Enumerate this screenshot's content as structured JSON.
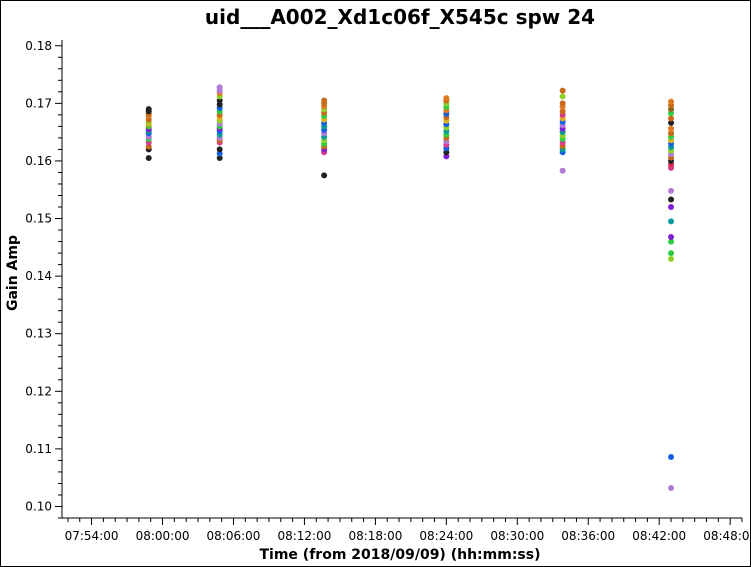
{
  "chart_data": {
    "type": "scatter",
    "title": "uid___A002_Xd1c06f_X545c spw 24",
    "xlabel": "Time (from 2018/09/09) (hh:mm:ss)",
    "ylabel": "Gain Amp",
    "xlim": [
      "07:51:30",
      "08:49:00"
    ],
    "ylim": [
      0.098,
      0.181
    ],
    "x_ticks": [
      "07:54:00",
      "08:00:00",
      "08:06:00",
      "08:12:00",
      "08:18:00",
      "08:24:00",
      "08:30:00",
      "08:36:00",
      "08:42:00",
      "08:48:00"
    ],
    "y_ticks": [
      "0.10",
      "0.11",
      "0.12",
      "0.13",
      "0.14",
      "0.15",
      "0.16",
      "0.17",
      "0.18"
    ],
    "grid": false,
    "legend": "none",
    "points": [
      {
        "x": "07:58:50",
        "y": 0.1605,
        "color": "#222222"
      },
      {
        "x": "07:58:50",
        "y": 0.162,
        "color": "#222222"
      },
      {
        "x": "07:58:50",
        "y": 0.1625,
        "color": "#c96a1a"
      },
      {
        "x": "07:58:50",
        "y": 0.1632,
        "color": "#d63a8e"
      },
      {
        "x": "07:58:50",
        "y": 0.1638,
        "color": "#2ecc40"
      },
      {
        "x": "07:58:50",
        "y": 0.1642,
        "color": "#b07bd6"
      },
      {
        "x": "07:58:50",
        "y": 0.1648,
        "color": "#1560e0"
      },
      {
        "x": "07:58:50",
        "y": 0.1652,
        "color": "#0a9a9a"
      },
      {
        "x": "07:58:50",
        "y": 0.1655,
        "color": "#7f1fd1"
      },
      {
        "x": "07:58:50",
        "y": 0.166,
        "color": "#5ab82e"
      },
      {
        "x": "07:58:50",
        "y": 0.1665,
        "color": "#e0b020"
      },
      {
        "x": "07:58:50",
        "y": 0.1668,
        "color": "#8fd028"
      },
      {
        "x": "07:58:50",
        "y": 0.1672,
        "color": "#c96a1a"
      },
      {
        "x": "07:58:50",
        "y": 0.1678,
        "color": "#e07a20"
      },
      {
        "x": "07:58:50",
        "y": 0.1682,
        "color": "#c96a1a"
      },
      {
        "x": "07:58:50",
        "y": 0.1686,
        "color": "#222222"
      },
      {
        "x": "07:58:50",
        "y": 0.169,
        "color": "#222222"
      },
      {
        "x": "08:04:50",
        "y": 0.1605,
        "color": "#222222"
      },
      {
        "x": "08:04:50",
        "y": 0.1613,
        "color": "#1560e0"
      },
      {
        "x": "08:04:50",
        "y": 0.162,
        "color": "#222222"
      },
      {
        "x": "08:04:50",
        "y": 0.1632,
        "color": "#d63a8e"
      },
      {
        "x": "08:04:50",
        "y": 0.1636,
        "color": "#c96a1a"
      },
      {
        "x": "08:04:50",
        "y": 0.164,
        "color": "#b07bd6"
      },
      {
        "x": "08:04:50",
        "y": 0.1646,
        "color": "#0a9a9a"
      },
      {
        "x": "08:04:50",
        "y": 0.1652,
        "color": "#1560e0"
      },
      {
        "x": "08:04:50",
        "y": 0.1656,
        "color": "#7f1fd1"
      },
      {
        "x": "08:04:50",
        "y": 0.166,
        "color": "#2ecc40"
      },
      {
        "x": "08:04:50",
        "y": 0.1665,
        "color": "#b07bd6"
      },
      {
        "x": "08:04:50",
        "y": 0.167,
        "color": "#8fd028"
      },
      {
        "x": "08:04:50",
        "y": 0.1675,
        "color": "#e0b020"
      },
      {
        "x": "08:04:50",
        "y": 0.168,
        "color": "#c96a1a"
      },
      {
        "x": "08:04:50",
        "y": 0.1686,
        "color": "#2ecc40"
      },
      {
        "x": "08:04:50",
        "y": 0.1692,
        "color": "#1560e0"
      },
      {
        "x": "08:04:50",
        "y": 0.1698,
        "color": "#222222"
      },
      {
        "x": "08:04:50",
        "y": 0.1705,
        "color": "#222222"
      },
      {
        "x": "08:04:50",
        "y": 0.1712,
        "color": "#8fd028"
      },
      {
        "x": "08:04:50",
        "y": 0.1718,
        "color": "#e07a20"
      },
      {
        "x": "08:04:50",
        "y": 0.1722,
        "color": "#b07bd6"
      },
      {
        "x": "08:04:50",
        "y": 0.1728,
        "color": "#b07bd6"
      },
      {
        "x": "08:13:40",
        "y": 0.1575,
        "color": "#222222"
      },
      {
        "x": "08:13:40",
        "y": 0.1615,
        "color": "#d63a8e"
      },
      {
        "x": "08:13:40",
        "y": 0.162,
        "color": "#7f1fd1"
      },
      {
        "x": "08:13:40",
        "y": 0.1625,
        "color": "#c96a1a"
      },
      {
        "x": "08:13:40",
        "y": 0.163,
        "color": "#2ecc40"
      },
      {
        "x": "08:13:40",
        "y": 0.1636,
        "color": "#8fd028"
      },
      {
        "x": "08:13:40",
        "y": 0.1642,
        "color": "#0a9a9a"
      },
      {
        "x": "08:13:40",
        "y": 0.1648,
        "color": "#b07bd6"
      },
      {
        "x": "08:13:40",
        "y": 0.1654,
        "color": "#1560e0"
      },
      {
        "x": "08:13:40",
        "y": 0.166,
        "color": "#0a9a9a"
      },
      {
        "x": "08:13:40",
        "y": 0.1666,
        "color": "#1560e0"
      },
      {
        "x": "08:13:40",
        "y": 0.1672,
        "color": "#e0b020"
      },
      {
        "x": "08:13:40",
        "y": 0.1678,
        "color": "#2ecc40"
      },
      {
        "x": "08:13:40",
        "y": 0.1684,
        "color": "#c96a1a"
      },
      {
        "x": "08:13:40",
        "y": 0.169,
        "color": "#8fd028"
      },
      {
        "x": "08:13:40",
        "y": 0.1695,
        "color": "#e07a20"
      },
      {
        "x": "08:13:40",
        "y": 0.17,
        "color": "#c96a1a"
      },
      {
        "x": "08:13:40",
        "y": 0.1705,
        "color": "#c96a1a"
      },
      {
        "x": "08:24:00",
        "y": 0.1608,
        "color": "#7f1fd1"
      },
      {
        "x": "08:24:00",
        "y": 0.1615,
        "color": "#222222"
      },
      {
        "x": "08:24:00",
        "y": 0.1622,
        "color": "#1560e0"
      },
      {
        "x": "08:24:00",
        "y": 0.1628,
        "color": "#d63a8e"
      },
      {
        "x": "08:24:00",
        "y": 0.1634,
        "color": "#b07bd6"
      },
      {
        "x": "08:24:00",
        "y": 0.164,
        "color": "#c96a1a"
      },
      {
        "x": "08:24:00",
        "y": 0.1646,
        "color": "#2ecc40"
      },
      {
        "x": "08:24:00",
        "y": 0.1652,
        "color": "#0a9a9a"
      },
      {
        "x": "08:24:00",
        "y": 0.1658,
        "color": "#8fd028"
      },
      {
        "x": "08:24:00",
        "y": 0.1664,
        "color": "#1560e0"
      },
      {
        "x": "08:24:00",
        "y": 0.167,
        "color": "#e0b020"
      },
      {
        "x": "08:24:00",
        "y": 0.1676,
        "color": "#c96a1a"
      },
      {
        "x": "08:24:00",
        "y": 0.1682,
        "color": "#1560e0"
      },
      {
        "x": "08:24:00",
        "y": 0.1688,
        "color": "#e07a20"
      },
      {
        "x": "08:24:00",
        "y": 0.1694,
        "color": "#2ecc40"
      },
      {
        "x": "08:24:00",
        "y": 0.17,
        "color": "#8fd028"
      },
      {
        "x": "08:24:00",
        "y": 0.1705,
        "color": "#c96a1a"
      },
      {
        "x": "08:24:00",
        "y": 0.1709,
        "color": "#e07a20"
      },
      {
        "x": "08:33:50",
        "y": 0.1583,
        "color": "#b07bd6"
      },
      {
        "x": "08:33:50",
        "y": 0.1615,
        "color": "#1560e0"
      },
      {
        "x": "08:33:50",
        "y": 0.162,
        "color": "#0a9a9a"
      },
      {
        "x": "08:33:50",
        "y": 0.1626,
        "color": "#c96a1a"
      },
      {
        "x": "08:33:50",
        "y": 0.1632,
        "color": "#d63a8e"
      },
      {
        "x": "08:33:50",
        "y": 0.1638,
        "color": "#2ecc40"
      },
      {
        "x": "08:33:50",
        "y": 0.1644,
        "color": "#8fd028"
      },
      {
        "x": "08:33:50",
        "y": 0.165,
        "color": "#0a9a9a"
      },
      {
        "x": "08:33:50",
        "y": 0.1656,
        "color": "#7f1fd1"
      },
      {
        "x": "08:33:50",
        "y": 0.1662,
        "color": "#b07bd6"
      },
      {
        "x": "08:33:50",
        "y": 0.1668,
        "color": "#1560e0"
      },
      {
        "x": "08:33:50",
        "y": 0.1674,
        "color": "#e0b020"
      },
      {
        "x": "08:33:50",
        "y": 0.168,
        "color": "#d63a8e"
      },
      {
        "x": "08:33:50",
        "y": 0.1686,
        "color": "#c96a1a"
      },
      {
        "x": "08:33:50",
        "y": 0.1694,
        "color": "#e07a20"
      },
      {
        "x": "08:33:50",
        "y": 0.17,
        "color": "#c96a1a"
      },
      {
        "x": "08:33:50",
        "y": 0.1712,
        "color": "#8fd028"
      },
      {
        "x": "08:33:50",
        "y": 0.1722,
        "color": "#c96a1a"
      },
      {
        "x": "08:43:00",
        "y": 0.1032,
        "color": "#b07bd6"
      },
      {
        "x": "08:43:00",
        "y": 0.1086,
        "color": "#1560e0"
      },
      {
        "x": "08:43:00",
        "y": 0.146,
        "color": "#2ecc40"
      },
      {
        "x": "08:43:00",
        "y": 0.1468,
        "color": "#7f1fd1"
      },
      {
        "x": "08:43:00",
        "y": 0.1495,
        "color": "#0a9a9a"
      },
      {
        "x": "08:43:00",
        "y": 0.152,
        "color": "#7f1fd1"
      },
      {
        "x": "08:43:00",
        "y": 0.1533,
        "color": "#222222"
      },
      {
        "x": "08:43:00",
        "y": 0.1548,
        "color": "#b07bd6"
      },
      {
        "x": "08:43:00",
        "y": 0.1588,
        "color": "#d63a8e"
      },
      {
        "x": "08:43:00",
        "y": 0.1594,
        "color": "#e0294a"
      },
      {
        "x": "08:43:00",
        "y": 0.16,
        "color": "#222222"
      },
      {
        "x": "08:43:00",
        "y": 0.1606,
        "color": "#c96a1a"
      },
      {
        "x": "08:43:00",
        "y": 0.1612,
        "color": "#b07bd6"
      },
      {
        "x": "08:43:00",
        "y": 0.1618,
        "color": "#8fd028"
      },
      {
        "x": "08:43:00",
        "y": 0.1624,
        "color": "#0a9a9a"
      },
      {
        "x": "08:43:00",
        "y": 0.163,
        "color": "#1560e0"
      },
      {
        "x": "08:43:00",
        "y": 0.1636,
        "color": "#e0b020"
      },
      {
        "x": "08:43:00",
        "y": 0.1642,
        "color": "#2ecc40"
      },
      {
        "x": "08:43:00",
        "y": 0.1648,
        "color": "#c96a1a"
      },
      {
        "x": "08:43:00",
        "y": 0.1656,
        "color": "#e07a20"
      },
      {
        "x": "08:43:00",
        "y": 0.1666,
        "color": "#222222"
      },
      {
        "x": "08:43:00",
        "y": 0.1674,
        "color": "#c96a1a"
      },
      {
        "x": "08:43:00",
        "y": 0.1683,
        "color": "#2ecc40"
      },
      {
        "x": "08:43:00",
        "y": 0.169,
        "color": "#8a6a1a"
      },
      {
        "x": "08:43:00",
        "y": 0.1697,
        "color": "#c96a1a"
      },
      {
        "x": "08:43:00",
        "y": 0.1703,
        "color": "#e07a20"
      },
      {
        "x": "08:43:00",
        "y": 0.144,
        "color": "#2ecc40"
      },
      {
        "x": "08:43:00",
        "y": 0.143,
        "color": "#8fd028"
      }
    ]
  }
}
